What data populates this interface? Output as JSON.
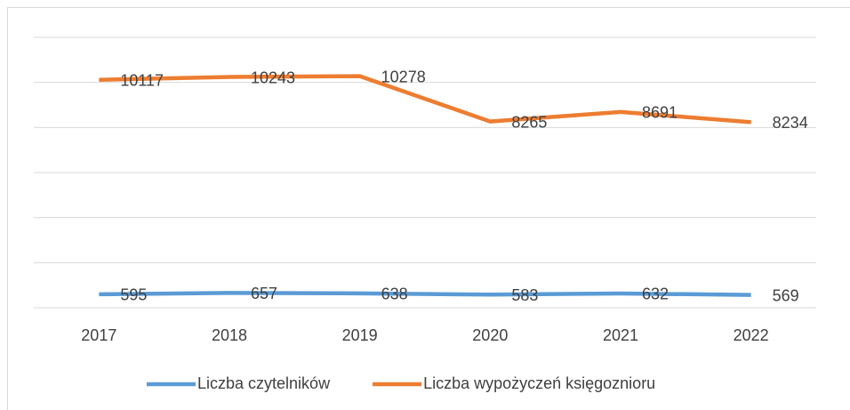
{
  "chart_data": {
    "type": "line",
    "categories": [
      "2017",
      "2018",
      "2019",
      "2020",
      "2021",
      "2022"
    ],
    "series": [
      {
        "name": "Liczba czytelników",
        "color": "#5b9bd5",
        "values": [
          595,
          657,
          638,
          583,
          632,
          569
        ]
      },
      {
        "name": "Liczba wypożyczeń księgoznioru",
        "color": "#ed7d31",
        "values": [
          10117,
          10243,
          10278,
          8265,
          8691,
          8234
        ]
      }
    ],
    "ylim": [
      0,
      12000
    ],
    "yticks": [
      0,
      2000,
      4000,
      6000,
      8000,
      10000,
      12000
    ],
    "grid": true,
    "legend": "bottom"
  }
}
